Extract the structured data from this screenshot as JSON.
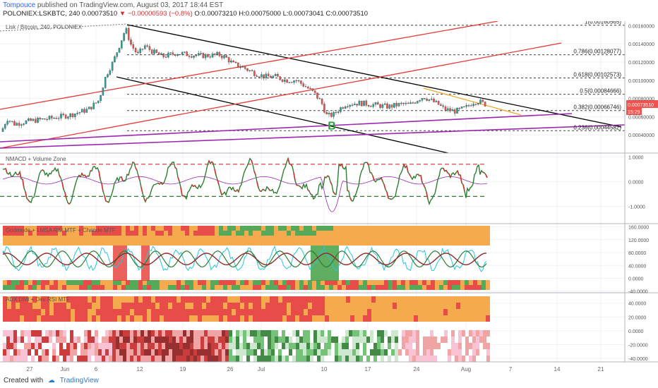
{
  "header": {
    "user": "Tompouce",
    "published_text": "published on TradingView.com, August 03, 2017 18:44 EST",
    "symbol_line": "POLONIEX:LSKBTC, 240",
    "last": "0.00073510",
    "change": "▼ −0.00000593 (−0.8%)",
    "ohlc": "O:0.00073210 H:0.00075000 L:0.00073041 C:0.00073510"
  },
  "footer": {
    "created_with": "Created with",
    "brand": "TradingView"
  },
  "colors": {
    "up": "#26a69a",
    "down": "#ef5350",
    "black_channel": "#000000",
    "red_channel": "#e53935",
    "purple_line": "#9c27b0",
    "orange_line": "#f5a623",
    "macd_red": "#d32f2f",
    "macd_green": "#2e7d32",
    "zone_orange": "#f4a23a",
    "zone_red": "#e53935",
    "zone_green": "#43a047"
  },
  "chart_data": [
    {
      "panel": "main",
      "type": "candlestick",
      "title": "Lisk / Bitcoin, 240, POLONIEX",
      "x_ticks": [
        "27",
        "Jun",
        "6",
        "12",
        "19",
        "26",
        "Jul",
        "10",
        "17",
        "24",
        "Aug",
        "7",
        "14",
        "21"
      ],
      "y_ticks": [
        "0.00160000",
        "0.00140000",
        "0.00120000",
        "0.00100000",
        "0.00080000",
        "0.00060000",
        "0.00040000"
      ],
      "ylim": [
        0.0002,
        0.00165
      ],
      "price_path": [
        [
          0,
          0.0004
        ],
        [
          10,
          0.00058
        ],
        [
          20,
          0.00052
        ],
        [
          40,
          0.00055
        ],
        [
          70,
          0.00058
        ],
        [
          100,
          0.00062
        ],
        [
          125,
          0.00068
        ],
        [
          140,
          0.00078
        ],
        [
          150,
          0.00105
        ],
        [
          160,
          0.0012
        ],
        [
          170,
          0.0014
        ],
        [
          178,
          0.00157
        ],
        [
          185,
          0.0014
        ],
        [
          195,
          0.00128
        ],
        [
          205,
          0.00138
        ],
        [
          215,
          0.00132
        ],
        [
          230,
          0.00126
        ],
        [
          250,
          0.0013
        ],
        [
          270,
          0.00128
        ],
        [
          290,
          0.00127
        ],
        [
          310,
          0.00128
        ],
        [
          320,
          0.00125
        ],
        [
          330,
          0.00118
        ],
        [
          345,
          0.00114
        ],
        [
          360,
          0.00108
        ],
        [
          375,
          0.00104
        ],
        [
          390,
          0.00104
        ],
        [
          405,
          0.001
        ],
        [
          420,
          0.001
        ],
        [
          435,
          0.00092
        ],
        [
          445,
          0.00086
        ],
        [
          455,
          0.00076
        ],
        [
          463,
          0.00061
        ],
        [
          472,
          0.00062
        ],
        [
          480,
          0.00068
        ],
        [
          490,
          0.00074
        ],
        [
          510,
          0.00075
        ],
        [
          530,
          0.00073
        ],
        [
          550,
          0.00071
        ],
        [
          570,
          0.00074
        ],
        [
          580,
          0.00073
        ],
        [
          590,
          0.00078
        ],
        [
          600,
          0.00082
        ],
        [
          610,
          0.00078
        ],
        [
          620,
          0.00074
        ],
        [
          630,
          0.00068
        ],
        [
          645,
          0.00066
        ],
        [
          660,
          0.0007
        ],
        [
          670,
          0.00076
        ],
        [
          678,
          0.00077
        ],
        [
          686,
          0.00074
        ],
        [
          690,
          0.00073
        ]
      ],
      "price_labels": {
        "last": "0.00073510",
        "countdown": "15:29"
      },
      "fib_levels": [
        {
          "label": "1(0.00160565)",
          "value": 0.00160565
        },
        {
          "label": "0.786(0.00128077)",
          "value": 0.00128077
        },
        {
          "label": "0.618(0.00102573)",
          "value": 0.00102573
        },
        {
          "label": "0.5(0.00084666)",
          "value": 0.00084666
        },
        {
          "label": "0.382(0.00066746)",
          "value": 0.00066746
        },
        {
          "label": "0.236(0.00044582)",
          "value": 0.00044582
        }
      ],
      "annotation": "B"
    },
    {
      "panel": "macd",
      "type": "line",
      "title": "NMACD + Volume Zone",
      "y_ticks": [
        "1.0000",
        "0.0000",
        "-1.0000"
      ],
      "ylim": [
        -1.7,
        1.15
      ],
      "thresholds": [
        0.7,
        -0.6
      ]
    },
    {
      "panel": "rsi",
      "type": "heatmap",
      "title": "Godmode + LMSA RSI MTF + Chande MTF",
      "y_ticks": [
        "160.0000",
        "120.0000",
        "80.0000",
        "40.0000",
        "0.0000",
        "-40.0000"
      ],
      "ylim": [
        -45,
        170
      ]
    },
    {
      "panel": "adx",
      "type": "heatmap",
      "title": "ADX DMI + Dev RSI MTF",
      "y_ticks": [
        "40.0000",
        "20.0000",
        "0.0000",
        "-20.0000",
        "-40.0000"
      ],
      "ylim": [
        -45,
        55
      ]
    }
  ]
}
